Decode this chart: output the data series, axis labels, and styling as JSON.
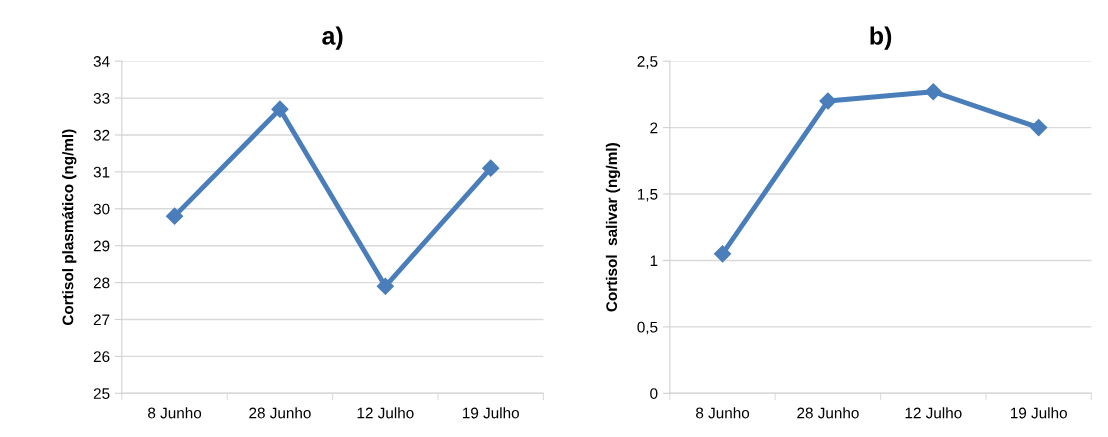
{
  "chart_data": [
    {
      "type": "line",
      "title": "a)",
      "ylabel": "Cortisol plasmático (ng/ml)",
      "categories": [
        "8 Junho",
        "28 Junho",
        "12 Julho",
        "19 Julho"
      ],
      "series": [
        {
          "color": "#4a7ebb",
          "values": [
            29.8,
            32.7,
            27.9,
            31.1
          ]
        }
      ],
      "ylim": [
        25,
        34
      ],
      "yticks": [
        25,
        26,
        27,
        28,
        29,
        30,
        31,
        32,
        33,
        34
      ],
      "grid": "y",
      "marker": "diamond",
      "line_style": "solid"
    },
    {
      "type": "line",
      "title": "b)",
      "ylabel": "Cortisol  salivar (ng/ml)",
      "categories": [
        "8 Junho",
        "28 Junho",
        "12 Julho",
        "19 Julho"
      ],
      "series": [
        {
          "color": "#4a7ebb",
          "values": [
            1.05,
            2.2,
            2.27,
            2.0
          ]
        }
      ],
      "ylim": [
        0,
        2.5
      ],
      "yticks": [
        0,
        {
          "value": 0.5,
          "label": "0,5"
        },
        1,
        {
          "value": 1.5,
          "label": "1,5"
        },
        2,
        {
          "value": 2.5,
          "label": "2,5"
        }
      ],
      "grid": "y",
      "marker": "diamond",
      "line_style": "solid"
    }
  ]
}
